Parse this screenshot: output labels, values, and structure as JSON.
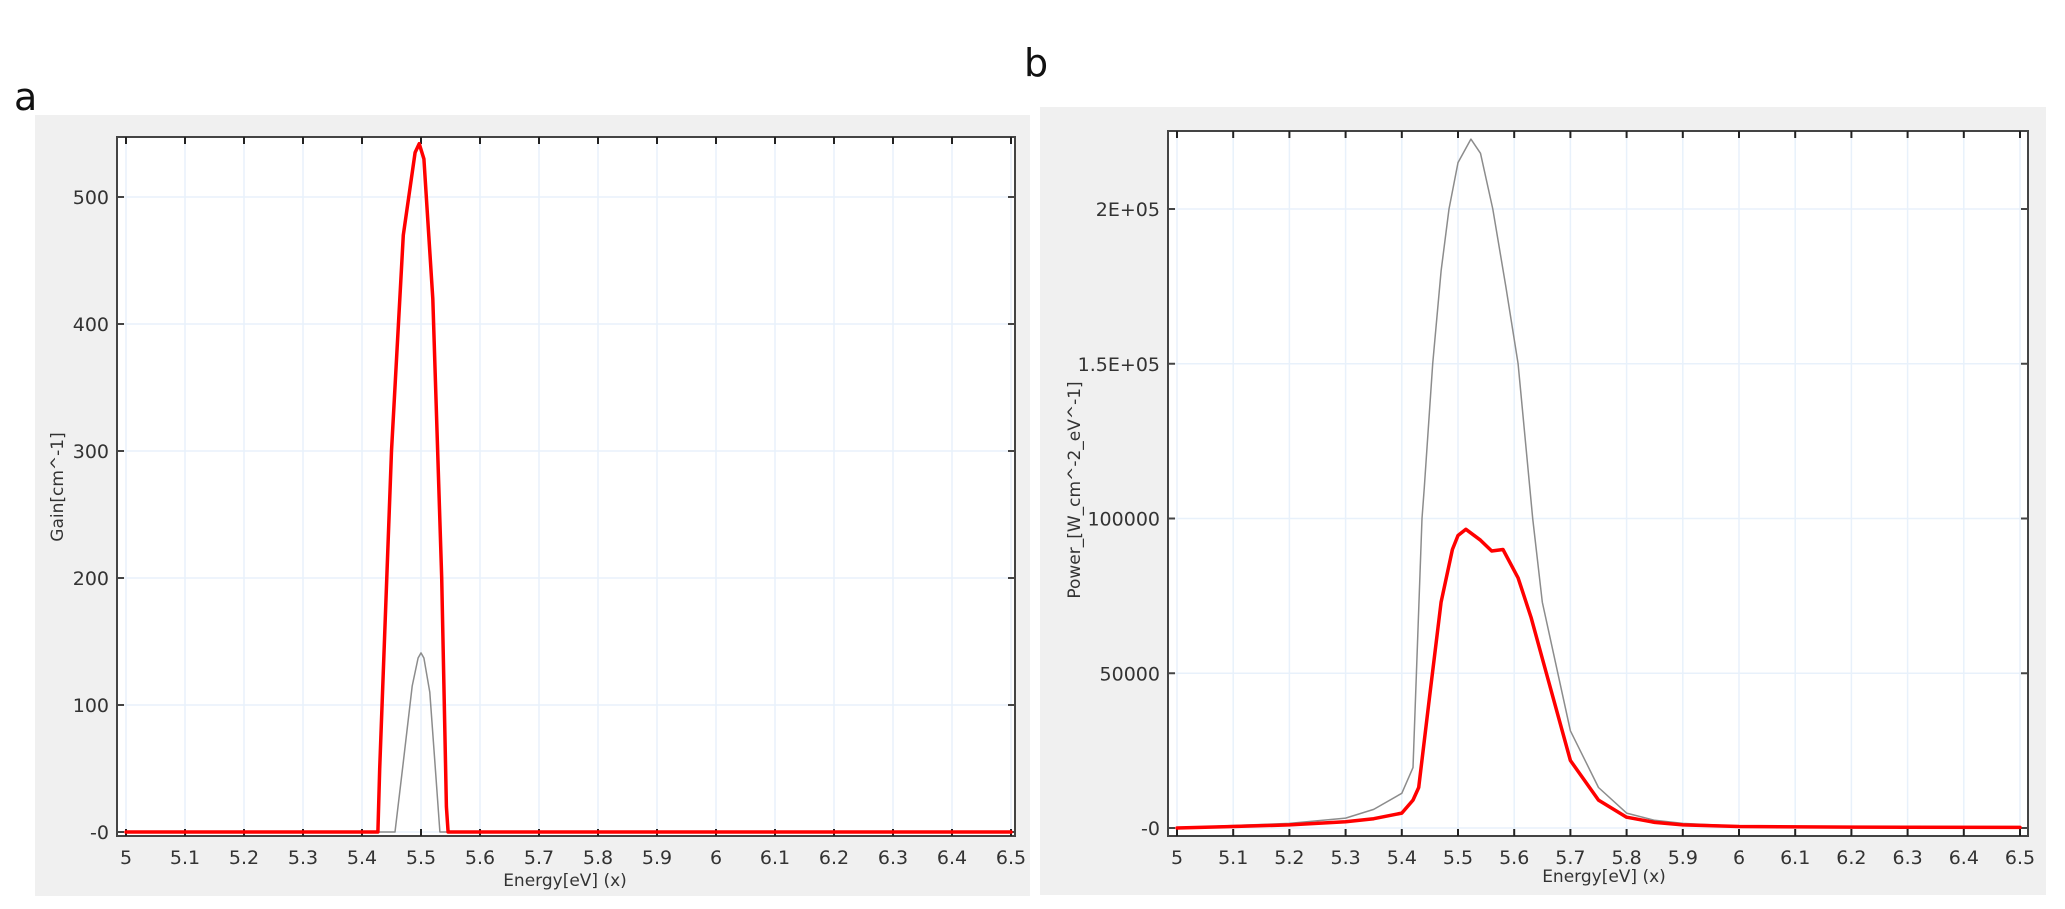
{
  "panels": {
    "a": {
      "label": "a"
    },
    "b": {
      "label": "b"
    }
  },
  "colors": {
    "panel_bg": "#f0f0f0",
    "plot_bg": "#ffffff",
    "grid": "#e8f1fb",
    "axis": "#444444",
    "series_red": "#ff0000",
    "series_gray": "#8c8c8c"
  },
  "chart_data": [
    {
      "id": "a",
      "type": "line",
      "title": "",
      "xlabel": "Energy[eV] (x)",
      "ylabel": "Gain[cm^-1]",
      "xlim": [
        5,
        6.5
      ],
      "ylim": [
        -5,
        545
      ],
      "grid": true,
      "legend": null,
      "x_ticks": [
        "5",
        "5.1",
        "5.2",
        "5.3",
        "5.4",
        "5.5",
        "5.6",
        "5.7",
        "5.8",
        "5.9",
        "6",
        "6.1",
        "6.2",
        "6.3",
        "6.4",
        "6.5"
      ],
      "y_ticks": [
        "-0",
        "100",
        "200",
        "300",
        "400",
        "500"
      ],
      "series": [
        {
          "name": "red",
          "color": "#ff0000",
          "width": 3.5,
          "x": [
            5.0,
            5.427,
            5.43,
            5.45,
            5.47,
            5.49,
            5.497,
            5.505,
            5.52,
            5.535,
            5.543,
            5.546,
            6.5
          ],
          "y": [
            0,
            0,
            50,
            300,
            470,
            535,
            542,
            530,
            420,
            200,
            20,
            0,
            0
          ]
        },
        {
          "name": "gray",
          "color": "#8c8c8c",
          "width": 1.5,
          "x": [
            5.0,
            5.456,
            5.47,
            5.485,
            5.495,
            5.5,
            5.505,
            5.515,
            5.525,
            5.532,
            6.5
          ],
          "y": [
            0,
            0,
            55,
            115,
            137,
            141,
            137,
            110,
            45,
            0,
            0
          ]
        }
      ]
    },
    {
      "id": "b",
      "type": "line",
      "title": "",
      "xlabel": "Energy[eV] (x)",
      "ylabel": "Power_[W_cm^-2_eV^-1]",
      "xlim": [
        5,
        6.5
      ],
      "ylim": [
        -2000,
        225000
      ],
      "grid": true,
      "legend": null,
      "x_ticks": [
        "5",
        "5.1",
        "5.2",
        "5.3",
        "5.4",
        "5.5",
        "5.6",
        "5.7",
        "5.8",
        "5.9",
        "6",
        "6.1",
        "6.2",
        "6.3",
        "6.4",
        "6.5"
      ],
      "y_ticks": [
        {
          "value": 0,
          "label": "-0"
        },
        {
          "value": 50000,
          "label": "50000"
        },
        {
          "value": 100000,
          "label": "100000"
        },
        {
          "value": 150000,
          "label": "1.5E+05"
        },
        {
          "value": 200000,
          "label": "2E+05"
        }
      ],
      "series": [
        {
          "name": "red",
          "color": "#ff0000",
          "width": 3.5,
          "x": [
            5.0,
            5.1,
            5.2,
            5.3,
            5.35,
            5.4,
            5.42,
            5.43,
            5.45,
            5.47,
            5.49,
            5.5,
            5.514,
            5.54,
            5.56,
            5.58,
            5.607,
            5.63,
            5.65,
            5.7,
            5.75,
            5.8,
            5.85,
            5.9,
            6.0,
            6.2,
            6.5
          ],
          "y": [
            0,
            500,
            1000,
            2000,
            3000,
            4800,
            9000,
            13100,
            43300,
            73000,
            90000,
            94500,
            96500,
            93000,
            89500,
            90000,
            80800,
            68000,
            54800,
            21800,
            9000,
            3500,
            1800,
            1000,
            500,
            300,
            200
          ]
        },
        {
          "name": "gray",
          "color": "#8c8c8c",
          "width": 1.5,
          "x": [
            5.0,
            5.1,
            5.2,
            5.3,
            5.35,
            5.4,
            5.42,
            5.436,
            5.44,
            5.455,
            5.47,
            5.484,
            5.5,
            5.523,
            5.54,
            5.562,
            5.585,
            5.607,
            5.633,
            5.65,
            5.7,
            5.75,
            5.8,
            5.85,
            5.9,
            6.0,
            6.2,
            6.5
          ],
          "y": [
            0,
            800,
            1500,
            3200,
            6000,
            11200,
            19500,
            100000,
            110000,
            150000,
            180000,
            200000,
            215000,
            222600,
            218000,
            200000,
            175000,
            150000,
            100000,
            73000,
            31400,
            13100,
            4800,
            2500,
            1500,
            600,
            300,
            200
          ]
        }
      ]
    }
  ]
}
